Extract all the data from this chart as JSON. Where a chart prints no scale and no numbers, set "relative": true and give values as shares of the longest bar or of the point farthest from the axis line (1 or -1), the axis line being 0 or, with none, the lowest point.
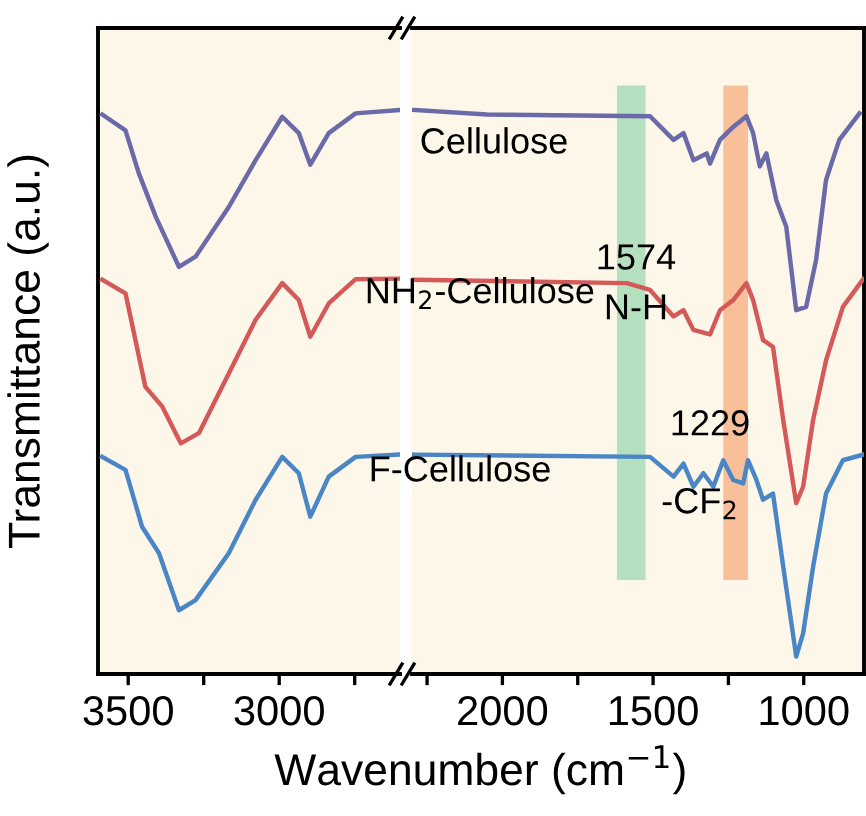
{
  "chart_data": [
    {
      "type": "line",
      "relative": true,
      "ylabel": "Transmittance (a.u.)",
      "xlabel": "Wavenumber (cm$^{−1}$)",
      "xlim": [
        3600,
        2600
      ],
      "xticks": [
        3500,
        {
          "value": 3250,
          "label": null
        },
        3000,
        {
          "value": 2750,
          "label": null
        }
      ],
      "tick_labels": "x",
      "legend": false,
      "grid": false,
      "series": [
        {
          "color": "#6a6aa8",
          "x": [
            3586,
            3509,
            3465,
            3409,
            3332,
            3277,
            3167,
            3078,
            2990,
            2935,
            2897,
            2836,
            2747,
            2603
          ],
          "values": [
            0.992,
            0.964,
            0.888,
            0.811,
            0.722,
            0.74,
            0.828,
            0.911,
            0.988,
            0.959,
            0.903,
            0.959,
            0.994,
            1
          ]
        },
        {
          "color": "#d45a5a",
          "x": [
            3586,
            3509,
            3443,
            3387,
            3326,
            3266,
            3167,
            3078,
            2990,
            2935,
            2897,
            2836,
            2747,
            2603
          ],
          "values": [
            0.699,
            0.675,
            0.509,
            0.474,
            0.409,
            0.427,
            0.533,
            0.628,
            0.693,
            0.663,
            0.598,
            0.657,
            0.7,
            0.701
          ]
        },
        {
          "color": "#4a86c5",
          "x": [
            3586,
            3509,
            3454,
            3398,
            3332,
            3277,
            3167,
            3078,
            2990,
            2935,
            2897,
            2836,
            2747,
            2603
          ],
          "values": [
            0.385,
            0.362,
            0.261,
            0.214,
            0.113,
            0.131,
            0.214,
            0.309,
            0.385,
            0.356,
            0.279,
            0.35,
            0.385,
            0.389
          ]
        }
      ]
    },
    {
      "type": "line",
      "relative": true,
      "xlim": [
        2300,
        800
      ],
      "xticks": [
        {
          "value": 2250,
          "label": null
        },
        2000,
        {
          "value": 1750,
          "label": null
        },
        1500,
        {
          "value": 1250,
          "label": null
        },
        1000
      ],
      "tick_labels": "x",
      "legend": false,
      "grid": false,
      "series": [
        {
          "name": "Cellulose",
          "color": "#6a6aa8",
          "x": [
            2293,
            2051,
            1510,
            1432,
            1399,
            1366,
            1322,
            1311,
            1278,
            1234,
            1190,
            1168,
            1146,
            1124,
            1091,
            1058,
            1025,
            992,
            959,
            926,
            882,
            815
          ],
          "values": [
            1,
            0.992,
            0.989,
            0.947,
            0.959,
            0.911,
            0.923,
            0.905,
            0.947,
            0.97,
            0.989,
            0.959,
            0.9,
            0.923,
            0.84,
            0.793,
            0.645,
            0.651,
            0.734,
            0.876,
            0.947,
            0.994
          ]
        },
        {
          "name": "NH$_{2}$-Cellulose",
          "color": "#d45a5a",
          "x": [
            2293,
            1587,
            1510,
            1432,
            1399,
            1366,
            1311,
            1278,
            1234,
            1190,
            1168,
            1135,
            1102,
            1068,
            1025,
            1002,
            969,
            926,
            870,
            803
          ],
          "values": [
            0.699,
            0.693,
            0.681,
            0.634,
            0.645,
            0.61,
            0.602,
            0.645,
            0.663,
            0.693,
            0.663,
            0.592,
            0.58,
            0.45,
            0.303,
            0.332,
            0.45,
            0.556,
            0.651,
            0.7
          ]
        },
        {
          "name": "F-Cellulose",
          "color": "#4a86c5",
          "x": [
            2293,
            1510,
            1432,
            1399,
            1366,
            1333,
            1300,
            1267,
            1234,
            1201,
            1185,
            1157,
            1135,
            1102,
            1068,
            1025,
            1002,
            969,
            926,
            870,
            803
          ],
          "values": [
            0.389,
            0.385,
            0.35,
            0.373,
            0.332,
            0.356,
            0.332,
            0.379,
            0.344,
            0.338,
            0.379,
            0.344,
            0.309,
            0.32,
            0.19,
            0.031,
            0.072,
            0.19,
            0.32,
            0.379,
            0.389
          ]
        }
      ],
      "bands": [
        {
          "axis": "x",
          "from": 1620,
          "to": 1525,
          "color": "#a8dcb8"
        },
        {
          "axis": "x",
          "from": 1267,
          "to": 1185,
          "color": "#f8b58a"
        }
      ],
      "annotations": [
        "1574",
        "N-H",
        "1229",
        "-CF$_{2}$"
      ]
    }
  ]
}
